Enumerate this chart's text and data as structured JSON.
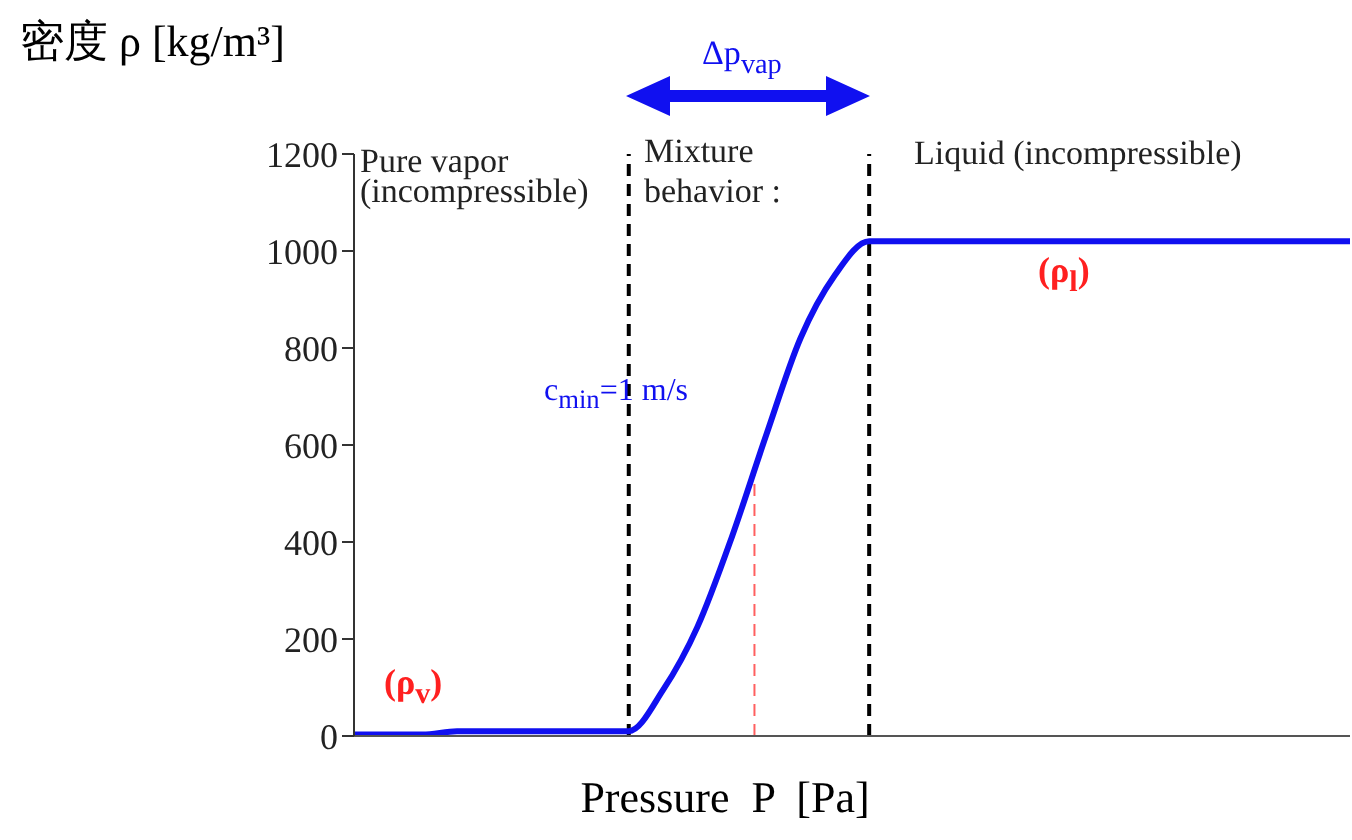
{
  "chart_data": {
    "type": "line",
    "ylabel": "密度 ρ  [kg/m³]",
    "xlabel": "Pressure  P  [Pa]",
    "categories": [
      null,
      null,
      null,
      null,
      null,
      null,
      null,
      null,
      null,
      null,
      null,
      null,
      null,
      null,
      null,
      null,
      null,
      null,
      null,
      null,
      null,
      null,
      null,
      null,
      null,
      null,
      null,
      null,
      null,
      null
    ],
    "series": [
      {
        "color": "#1010f0",
        "values": [
          3,
          3,
          3,
          10,
          10,
          10,
          10,
          10,
          10,
          95,
          225,
          410,
          620,
          820,
          950,
          1020,
          1020,
          1020,
          1020,
          1020,
          1020,
          1020,
          1020,
          1020,
          1020,
          1020,
          1020,
          1020,
          1020,
          1020
        ]
      }
    ],
    "ylim": [
      0,
      1200
    ],
    "yticks": [
      0,
      200,
      400,
      600,
      800,
      1000,
      1200
    ],
    "tick_labels": "y",
    "grid": false,
    "legend": false,
    "marker": "none",
    "line_style": "solid",
    "annotations": [
      "Pure vapor\n(incompressible)",
      "Mixture\nbehavior :",
      "Liquid (incompressible)",
      "Δp$_{vap}$",
      "c$_{min}$=1 m/s",
      "(ρ$_{v}$)",
      "(ρ$_{l}$)"
    ]
  }
}
